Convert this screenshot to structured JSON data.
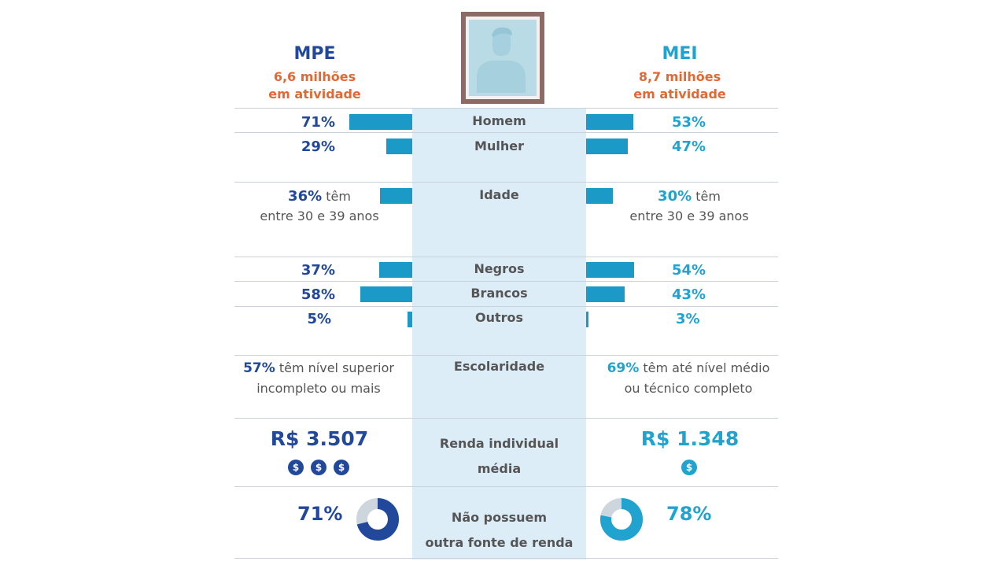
{
  "header": {
    "left": {
      "name": "MPE",
      "sub1": "6,6 milhões",
      "sub2": "em atividade"
    },
    "right": {
      "name": "MEI",
      "sub1": "8,7 milhões",
      "sub2": "em atividade"
    }
  },
  "colors": {
    "mpe_blue": "#21489a",
    "mei_blue": "#21a3cf",
    "bar": "#1b9ac7",
    "accent_orange": "#e06935",
    "center_band": "#dcedf7",
    "donut_track": "#cdd6dd"
  },
  "icons": {
    "portrait": "person-portrait-icon",
    "coin": "dollar-coin-icon"
  },
  "chart_data": {
    "type": "bar",
    "series": [
      {
        "name": "MPE"
      },
      {
        "name": "MEI"
      }
    ],
    "rows": [
      {
        "category": "Homem",
        "mpe": 71,
        "mpe_label": "71%",
        "mei": 53,
        "mei_label": "53%"
      },
      {
        "category": "Mulher",
        "mpe": 29,
        "mpe_label": "29%",
        "mei": 47,
        "mei_label": "47%"
      },
      {
        "category": "Idade",
        "mpe": 36,
        "mpe_label": "36%",
        "mpe_rest": " têm",
        "mpe_line2": "entre 30 e 39 anos",
        "mei": 30,
        "mei_label": "30%",
        "mei_rest": " têm",
        "mei_line2": "entre 30 e 39 anos"
      },
      {
        "category": "Negros",
        "mpe": 37,
        "mpe_label": "37%",
        "mei": 54,
        "mei_label": "54%"
      },
      {
        "category": "Brancos",
        "mpe": 58,
        "mpe_label": "58%",
        "mei": 43,
        "mei_label": "43%"
      },
      {
        "category": "Outros",
        "mpe": 5,
        "mpe_label": "5%",
        "mei": 3,
        "mei_label": "3%"
      }
    ],
    "escolaridade": {
      "category": "Escolaridade",
      "mpe_pct": "57%",
      "mpe_text1": " têm nível superior",
      "mpe_text2": "incompleto ou mais",
      "mei_pct": "69%",
      "mei_text1": " têm até nível médio",
      "mei_text2": "ou técnico completo"
    },
    "renda": {
      "category_line1": "Renda individual",
      "category_line2": "média",
      "mpe_value": "R$ 3.507",
      "mpe_coins": 3,
      "mei_value": "R$ 1.348",
      "mei_coins": 1,
      "coin_symbol": "$"
    },
    "outra_fonte": {
      "category_line1": "Não possuem",
      "category_line2": "outra fonte de renda",
      "mpe": 71,
      "mpe_label": "71%",
      "mei": 78,
      "mei_label": "78%"
    }
  }
}
